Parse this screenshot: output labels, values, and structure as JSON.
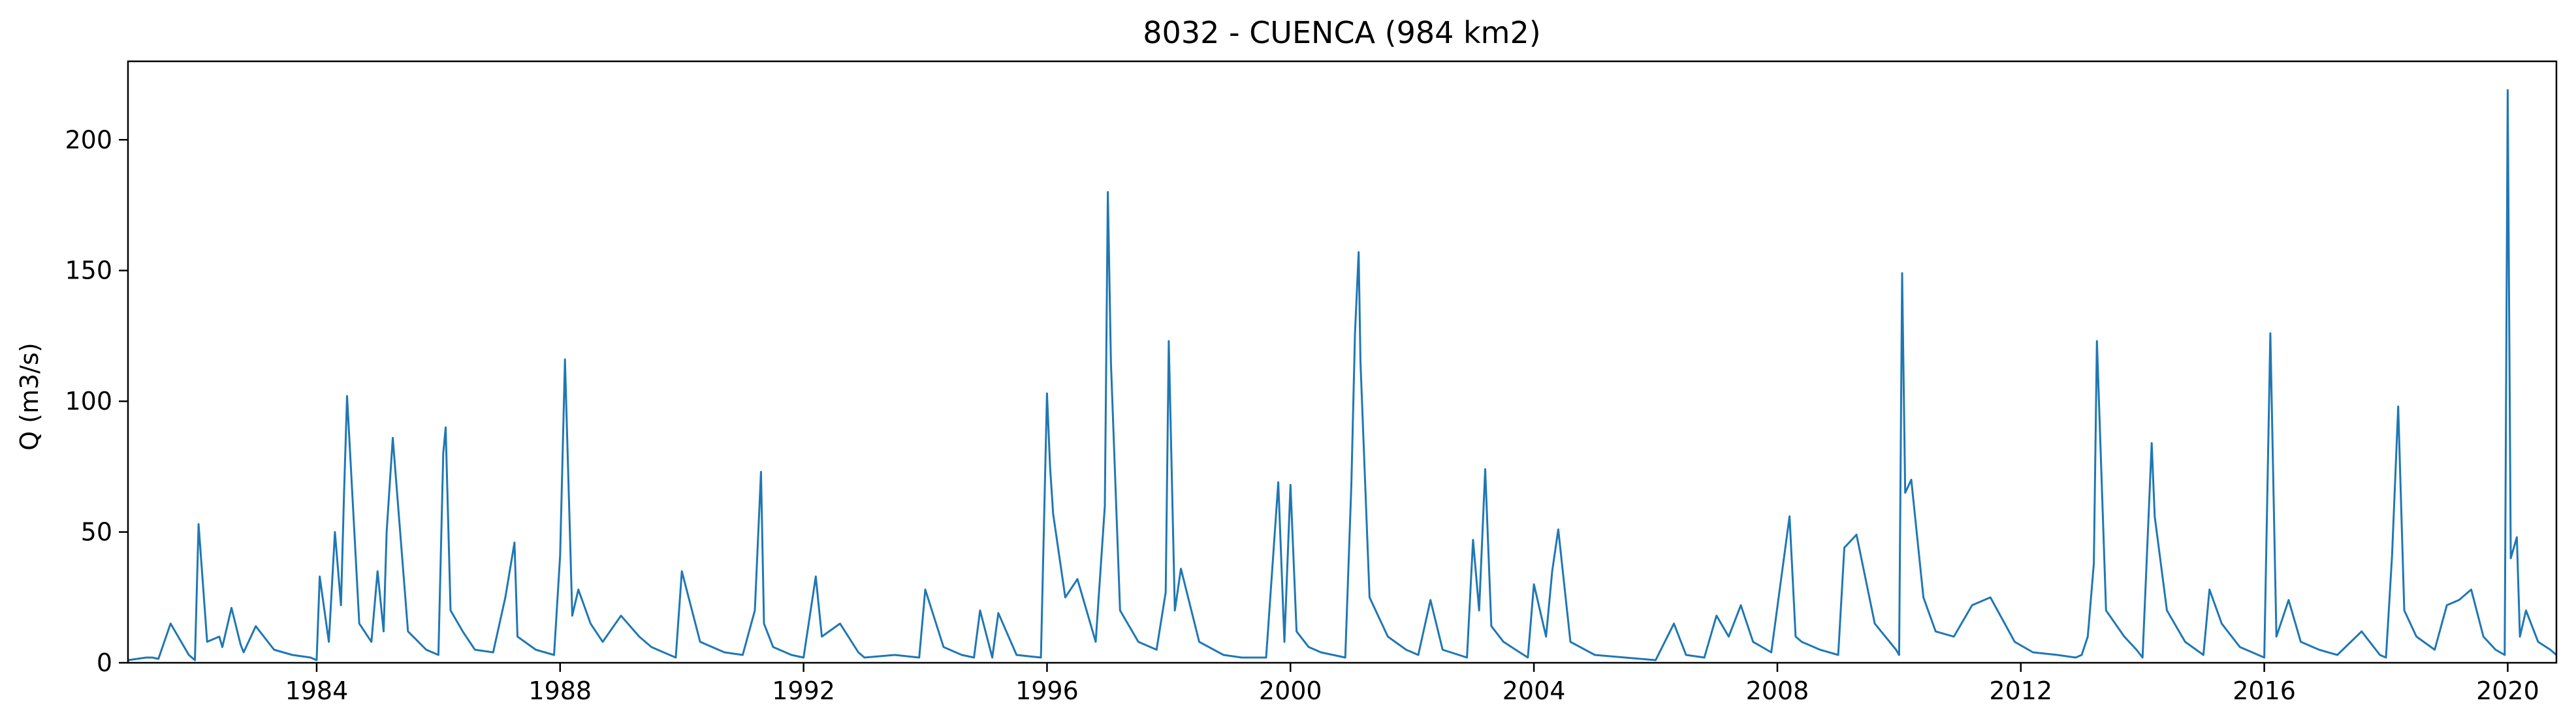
{
  "chart_data": {
    "type": "line",
    "title": "8032 - CUENCA (984 km2)",
    "xlabel": "",
    "ylabel": "Q (m3/s)",
    "xlim": [
      1980.9,
      2020.8
    ],
    "ylim": [
      0,
      230
    ],
    "x_ticks": [
      1984,
      1988,
      1992,
      1996,
      2000,
      2004,
      2008,
      2012,
      2016,
      2020
    ],
    "x_tick_labels": [
      "1984",
      "1988",
      "1992",
      "1996",
      "2000",
      "2004",
      "2008",
      "2012",
      "2016",
      "2020"
    ],
    "y_ticks": [
      0,
      50,
      100,
      150,
      200
    ],
    "y_tick_labels": [
      "0",
      "50",
      "100",
      "150",
      "200"
    ],
    "grid": false,
    "legend": "none",
    "series": [
      {
        "color": "#1f77b4",
        "x": [
          1980.9,
          1981.2,
          1981.3,
          1981.4,
          1981.6,
          1981.9,
          1982.0,
          1982.06,
          1982.2,
          1982.4,
          1982.45,
          1982.6,
          1982.75,
          1982.8,
          1983.0,
          1983.3,
          1983.6,
          1983.9,
          1984.0,
          1984.05,
          1984.2,
          1984.3,
          1984.4,
          1984.45,
          1984.5,
          1984.7,
          1984.9,
          1985.0,
          1985.1,
          1985.15,
          1985.25,
          1985.5,
          1985.8,
          1986.0,
          1986.08,
          1986.12,
          1986.2,
          1986.4,
          1986.6,
          1986.9,
          1987.1,
          1987.25,
          1987.3,
          1987.6,
          1987.9,
          1988.0,
          1988.08,
          1988.2,
          1988.3,
          1988.5,
          1988.7,
          1989.0,
          1989.3,
          1989.5,
          1989.7,
          1989.9,
          1990.0,
          1990.3,
          1990.7,
          1991.0,
          1991.2,
          1991.3,
          1991.35,
          1991.5,
          1991.8,
          1992.0,
          1992.2,
          1992.3,
          1992.6,
          1992.9,
          1993.0,
          1993.5,
          1993.9,
          1994.0,
          1994.3,
          1994.6,
          1994.8,
          1994.9,
          1995.1,
          1995.2,
          1995.5,
          1995.9,
          1996.0,
          1996.05,
          1996.1,
          1996.3,
          1996.5,
          1996.8,
          1996.95,
          1997.0,
          1997.05,
          1997.2,
          1997.5,
          1997.8,
          1997.95,
          1998.0,
          1998.1,
          1998.2,
          1998.5,
          1998.9,
          1999.2,
          1999.6,
          1999.8,
          1999.9,
          2000.0,
          2000.1,
          2000.3,
          2000.5,
          2000.9,
          2001.0,
          2001.06,
          2001.12,
          2001.15,
          2001.3,
          2001.6,
          2001.9,
          2002.1,
          2002.3,
          2002.5,
          2002.9,
          2003.0,
          2003.1,
          2003.2,
          2003.3,
          2003.5,
          2003.7,
          2003.9,
          2004.0,
          2004.2,
          2004.3,
          2004.4,
          2004.6,
          2005.0,
          2005.5,
          2006.0,
          2006.3,
          2006.5,
          2006.8,
          2007.0,
          2007.2,
          2007.4,
          2007.6,
          2007.9,
          2008.2,
          2008.3,
          2008.4,
          2008.7,
          2009.0,
          2009.1,
          2009.3,
          2009.6,
          2009.95,
          2010.0,
          2010.05,
          2010.1,
          2010.2,
          2010.4,
          2010.6,
          2010.9,
          2011.2,
          2011.5,
          2011.9,
          2012.2,
          2012.6,
          2012.9,
          2013.0,
          2013.1,
          2013.2,
          2013.25,
          2013.4,
          2013.7,
          2013.9,
          2014.0,
          2014.15,
          2014.2,
          2014.4,
          2014.7,
          2015.0,
          2015.1,
          2015.3,
          2015.6,
          2015.9,
          2016.0,
          2016.1,
          2016.2,
          2016.4,
          2016.6,
          2016.9,
          2017.2,
          2017.6,
          2017.9,
          2018.0,
          2018.1,
          2018.2,
          2018.3,
          2018.5,
          2018.8,
          2019.0,
          2019.2,
          2019.4,
          2019.6,
          2019.8,
          2019.95,
          2020.0,
          2020.05,
          2020.15,
          2020.2,
          2020.3,
          2020.5,
          2020.7,
          2020.8
        ],
        "y": [
          1,
          2,
          2,
          1.5,
          15,
          3,
          1,
          53,
          8,
          10,
          6,
          21,
          7,
          4,
          14,
          5,
          3,
          2,
          1,
          33,
          8,
          50,
          22,
          65,
          102,
          15,
          8,
          35,
          12,
          50,
          86,
          12,
          5,
          3,
          80,
          90,
          20,
          12,
          5,
          4,
          25,
          46,
          10,
          5,
          3,
          41,
          116,
          18,
          28,
          15,
          8,
          18,
          10,
          6,
          4,
          2,
          35,
          8,
          4,
          3,
          20,
          73,
          15,
          6,
          3,
          2,
          33,
          10,
          15,
          4,
          2,
          3,
          2,
          28,
          6,
          3,
          2,
          20,
          2,
          19,
          3,
          2,
          103,
          75,
          57,
          25,
          32,
          8,
          60,
          180,
          115,
          20,
          8,
          5,
          27,
          123,
          20,
          36,
          8,
          3,
          2,
          2,
          69,
          8,
          68,
          12,
          6,
          4,
          2,
          68,
          126,
          157,
          115,
          25,
          10,
          5,
          3,
          24,
          5,
          2,
          47,
          20,
          74,
          14,
          8,
          5,
          2,
          30,
          10,
          35,
          51,
          8,
          3,
          2,
          1,
          15,
          3,
          2,
          18,
          10,
          22,
          8,
          4,
          56,
          10,
          8,
          5,
          3,
          44,
          49,
          15,
          5,
          3,
          149,
          65,
          70,
          25,
          12,
          10,
          22,
          25,
          8,
          4,
          3,
          2,
          3,
          10,
          38,
          123,
          20,
          10,
          5,
          2,
          84,
          56,
          20,
          8,
          3,
          28,
          15,
          6,
          3,
          2,
          126,
          10,
          24,
          8,
          5,
          3,
          12,
          3,
          2,
          41,
          98,
          20,
          10,
          5,
          22,
          24,
          28,
          10,
          5,
          3,
          219,
          40,
          48,
          10,
          20,
          8,
          5,
          3
        ]
      }
    ]
  }
}
